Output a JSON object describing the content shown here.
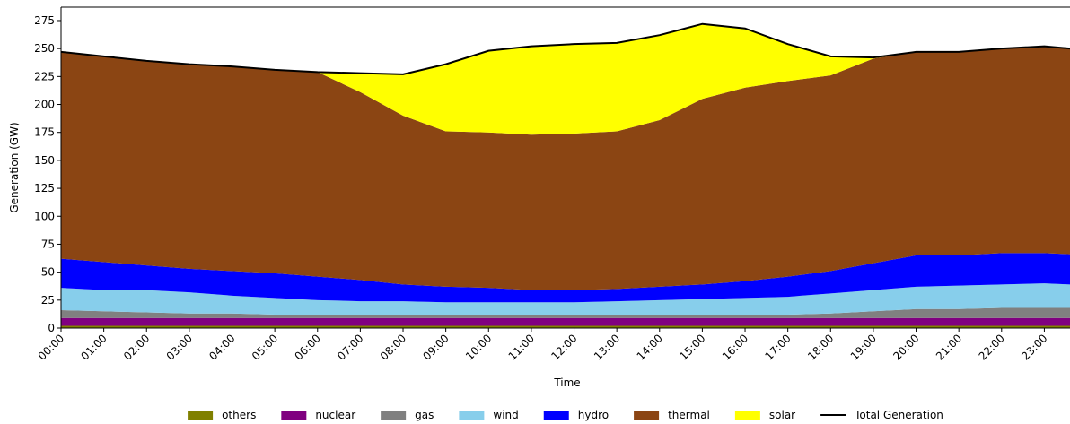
{
  "chart_data": {
    "type": "stacked-area",
    "x_label": "Time",
    "y_label": "Generation (GW)",
    "x": [
      0,
      1,
      2,
      3,
      4,
      5,
      6,
      7,
      8,
      9,
      10,
      11,
      12,
      13,
      14,
      15,
      16,
      17,
      18,
      19,
      20,
      21,
      22,
      23,
      23.6
    ],
    "xlim": [
      0,
      23.6
    ],
    "xticks": [
      {
        "value": 0,
        "label": "00:00"
      },
      {
        "value": 1,
        "label": "01:00"
      },
      {
        "value": 2,
        "label": "02:00"
      },
      {
        "value": 3,
        "label": "03:00"
      },
      {
        "value": 4,
        "label": "04:00"
      },
      {
        "value": 5,
        "label": "05:00"
      },
      {
        "value": 6,
        "label": "06:00"
      },
      {
        "value": 7,
        "label": "07:00"
      },
      {
        "value": 8,
        "label": "08:00"
      },
      {
        "value": 9,
        "label": "09:00"
      },
      {
        "value": 10,
        "label": "10:00"
      },
      {
        "value": 11,
        "label": "11:00"
      },
      {
        "value": 12,
        "label": "12:00"
      },
      {
        "value": 13,
        "label": "13:00"
      },
      {
        "value": 14,
        "label": "14:00"
      },
      {
        "value": 15,
        "label": "15:00"
      },
      {
        "value": 16,
        "label": "16:00"
      },
      {
        "value": 17,
        "label": "17:00"
      },
      {
        "value": 18,
        "label": "18:00"
      },
      {
        "value": 19,
        "label": "19:00"
      },
      {
        "value": 20,
        "label": "20:00"
      },
      {
        "value": 21,
        "label": "21:00"
      },
      {
        "value": 22,
        "label": "22:00"
      },
      {
        "value": 23,
        "label": "23:00"
      }
    ],
    "ylim": [
      0,
      287
    ],
    "yticks": [
      0,
      25,
      50,
      75,
      100,
      125,
      150,
      175,
      200,
      225,
      250,
      275
    ],
    "legend": "bottom",
    "series": [
      {
        "name": "others",
        "color": "#808000",
        "values": [
          2,
          2,
          2,
          2,
          2,
          2,
          2,
          2,
          2,
          2,
          2,
          2,
          2,
          2,
          2,
          2,
          2,
          2,
          2,
          2,
          2,
          2,
          2,
          2,
          2
        ]
      },
      {
        "name": "nuclear",
        "color": "#800080",
        "values": [
          7,
          7,
          7,
          7,
          7,
          7,
          7,
          7,
          7,
          7,
          7,
          7,
          7,
          7,
          7,
          7,
          7,
          7,
          7,
          7,
          7,
          7,
          7,
          7,
          7
        ]
      },
      {
        "name": "gas",
        "color": "#808080",
        "values": [
          7,
          6,
          5,
          4,
          4,
          3,
          3,
          3,
          3,
          3,
          3,
          3,
          3,
          3,
          3,
          3,
          3,
          3,
          4,
          6,
          8,
          8,
          9,
          9,
          9
        ]
      },
      {
        "name": "wind",
        "color": "#87ceeb",
        "values": [
          20,
          19,
          20,
          19,
          16,
          15,
          13,
          12,
          12,
          11,
          11,
          11,
          11,
          12,
          13,
          14,
          15,
          16,
          18,
          19,
          20,
          21,
          21,
          22,
          21
        ]
      },
      {
        "name": "hydro",
        "color": "#0000ff",
        "values": [
          26,
          25,
          22,
          21,
          22,
          22,
          21,
          19,
          15,
          14,
          13,
          11,
          11,
          11,
          12,
          13,
          15,
          18,
          20,
          24,
          28,
          27,
          28,
          27,
          27
        ]
      },
      {
        "name": "thermal",
        "color": "#8b4513",
        "values": [
          185,
          184,
          183,
          183,
          183,
          182,
          183,
          168,
          151,
          139,
          139,
          139,
          140,
          141,
          149,
          166,
          173,
          175,
          175,
          183,
          182,
          182,
          183,
          185,
          184
        ]
      },
      {
        "name": "solar",
        "color": "#ffff00",
        "values": [
          0,
          0,
          0,
          0,
          0,
          0,
          0,
          17,
          37,
          60,
          73,
          79,
          80,
          79,
          76,
          67,
          53,
          33,
          17,
          1,
          0,
          0,
          0,
          0,
          0
        ]
      }
    ],
    "total": {
      "name": "Total Generation",
      "color": "#000000",
      "values": [
        247,
        243,
        239,
        236,
        234,
        231,
        229,
        228,
        227,
        236,
        248,
        252,
        254,
        255,
        262,
        272,
        268,
        254,
        243,
        242,
        247,
        247,
        250,
        252,
        250
      ]
    }
  }
}
